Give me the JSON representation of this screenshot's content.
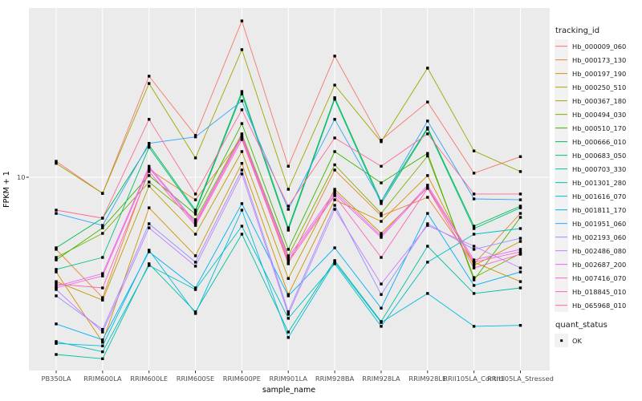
{
  "panel": {
    "bg": "#EBEBEB",
    "grid_color": "#FFFFFF",
    "tick_color": "#333333",
    "point_color": "#000000"
  },
  "axes": {
    "y_title": "FPKM + 1",
    "x_title": "sample_name",
    "y_tick_label": "10"
  },
  "legend": {
    "title": "tracking_id",
    "quant_title": "quant_status",
    "quant_label": "OK"
  },
  "chart_data": {
    "type": "line",
    "title": "",
    "xlabel": "sample_name",
    "ylabel": "FPKM + 1",
    "yscale": "log10",
    "ylim": [
      1,
      76
    ],
    "y_ticks": [
      10
    ],
    "grid": "major",
    "legend_position": "right",
    "point_shape": "square",
    "categories": [
      "PB350LA",
      "RRIM600LA",
      "RRIM600LE",
      "RRIM600SE",
      "RRIM600PE",
      "RRIM901LA",
      "RRIM928BA",
      "RRIM928LA",
      "RRIM928LE",
      "RRII105LA_Control",
      "RRII105LA_Stressed"
    ],
    "series": [
      {
        "name": "Hb_000009_060",
        "color": "#F8766D",
        "values": [
          12.1,
          8.25,
          33.5,
          16.5,
          64.9,
          11.4,
          42.6,
          15.6,
          24.6,
          10.5,
          12.8
        ]
      },
      {
        "name": "Hb_000173_130",
        "color": "#EA8331",
        "values": [
          4.22,
          2.37,
          11.0,
          7.64,
          16.0,
          3.55,
          10.9,
          6.31,
          7.87,
          3.55,
          6.49
        ]
      },
      {
        "name": "Hb_000197_190",
        "color": "#D89000",
        "values": [
          3.22,
          1.39,
          6.94,
          3.91,
          11.8,
          2.46,
          7.64,
          5.9,
          10.2,
          3.48,
          4.64
        ]
      },
      {
        "name": "Hb_000250_510",
        "color": "#C09B00",
        "values": [
          2.87,
          2.3,
          9.0,
          5.06,
          13.6,
          2.98,
          8.66,
          5.11,
          8.83,
          3.62,
          2.87
        ]
      },
      {
        "name": "Hb_000367_180",
        "color": "#A3A500",
        "values": [
          11.8,
          8.25,
          30.7,
          12.6,
          46.0,
          8.66,
          30.1,
          15.3,
          36.9,
          13.7,
          10.7
        ]
      },
      {
        "name": "Hb_000494_030",
        "color": "#7CAE00",
        "values": [
          3.83,
          5.11,
          9.44,
          6.02,
          16.8,
          3.91,
          11.6,
          6.49,
          12.9,
          3.01,
          4.02
        ]
      },
      {
        "name": "Hb_000510_170",
        "color": "#39B600",
        "values": [
          3.72,
          5.46,
          10.2,
          6.43,
          19.0,
          4.22,
          13.6,
          9.35,
          13.3,
          2.93,
          6.19
        ]
      },
      {
        "name": "Hb_000666_010",
        "color": "#00BB4E",
        "values": [
          4.3,
          6.13,
          14.7,
          6.75,
          27.9,
          5.46,
          25.9,
          7.5,
          18.1,
          5.57,
          7.08
        ]
      },
      {
        "name": "Hb_000683_050",
        "color": "#00BF7D",
        "values": [
          3.32,
          3.83,
          14.3,
          6.62,
          27.1,
          5.31,
          25.4,
          7.29,
          17.8,
          5.41,
          6.94
        ]
      },
      {
        "name": "Hb_000703_330",
        "color": "#00C1A3",
        "values": [
          1.2,
          1.14,
          3.55,
          2.0,
          5.06,
          1.57,
          3.69,
          1.78,
          4.38,
          2.49,
          2.66
        ]
      },
      {
        "name": "Hb_001301_280",
        "color": "#00BFC4",
        "values": [
          1.4,
          1.24,
          3.48,
          2.61,
          5.57,
          1.85,
          3.55,
          1.68,
          3.62,
          5.06,
          5.41
        ]
      },
      {
        "name": "Hb_001616_070",
        "color": "#00BAE0",
        "values": [
          1.37,
          1.33,
          4.18,
          1.96,
          6.75,
          1.47,
          3.62,
          1.76,
          2.49,
          1.68,
          1.7
        ]
      },
      {
        "name": "Hb_001811_170",
        "color": "#00B0F6",
        "values": [
          1.73,
          1.43,
          4.1,
          2.66,
          7.29,
          2.42,
          4.3,
          2.09,
          6.49,
          2.74,
          3.22
        ]
      },
      {
        "name": "Hb_001951_060",
        "color": "#35A2FF",
        "values": [
          6.49,
          5.62,
          15.0,
          16.2,
          24.9,
          6.81,
          20.0,
          7.5,
          19.6,
          7.72,
          7.64
        ]
      },
      {
        "name": "Hb_002193_060",
        "color": "#9590FF",
        "values": [
          2.42,
          1.62,
          5.73,
          3.62,
          10.9,
          2.0,
          7.15,
          2.46,
          5.73,
          4.22,
          4.82
        ]
      },
      {
        "name": "Hb_002486_080",
        "color": "#C77CFF",
        "values": [
          2.61,
          1.57,
          5.46,
          3.45,
          10.4,
          1.94,
          6.81,
          2.79,
          5.62,
          4.38,
          3.38
        ]
      },
      {
        "name": "Hb_002687_200",
        "color": "#E76BF3",
        "values": [
          2.71,
          3.16,
          11.4,
          5.84,
          16.5,
          3.83,
          8.41,
          4.97,
          9.09,
          3.72,
          4.22
        ]
      },
      {
        "name": "Hb_007416_070",
        "color": "#FA62DB",
        "values": [
          2.66,
          3.07,
          11.2,
          5.73,
          16.2,
          3.72,
          8.18,
          4.87,
          8.91,
          3.62,
          4.1
        ]
      },
      {
        "name": "Hb_018845_010",
        "color": "#FF62BC",
        "values": [
          2.79,
          2.66,
          10.7,
          5.62,
          15.7,
          3.62,
          8.02,
          3.83,
          8.75,
          3.38,
          3.98
        ]
      },
      {
        "name": "Hb_065968_010",
        "color": "#FF6A98",
        "values": [
          6.75,
          6.13,
          20.0,
          8.18,
          22.4,
          7.08,
          16.0,
          11.4,
          16.8,
          8.18,
          8.18
        ]
      }
    ],
    "quant_status": {
      "label": "OK",
      "shape": "square",
      "color": "#000000"
    }
  }
}
